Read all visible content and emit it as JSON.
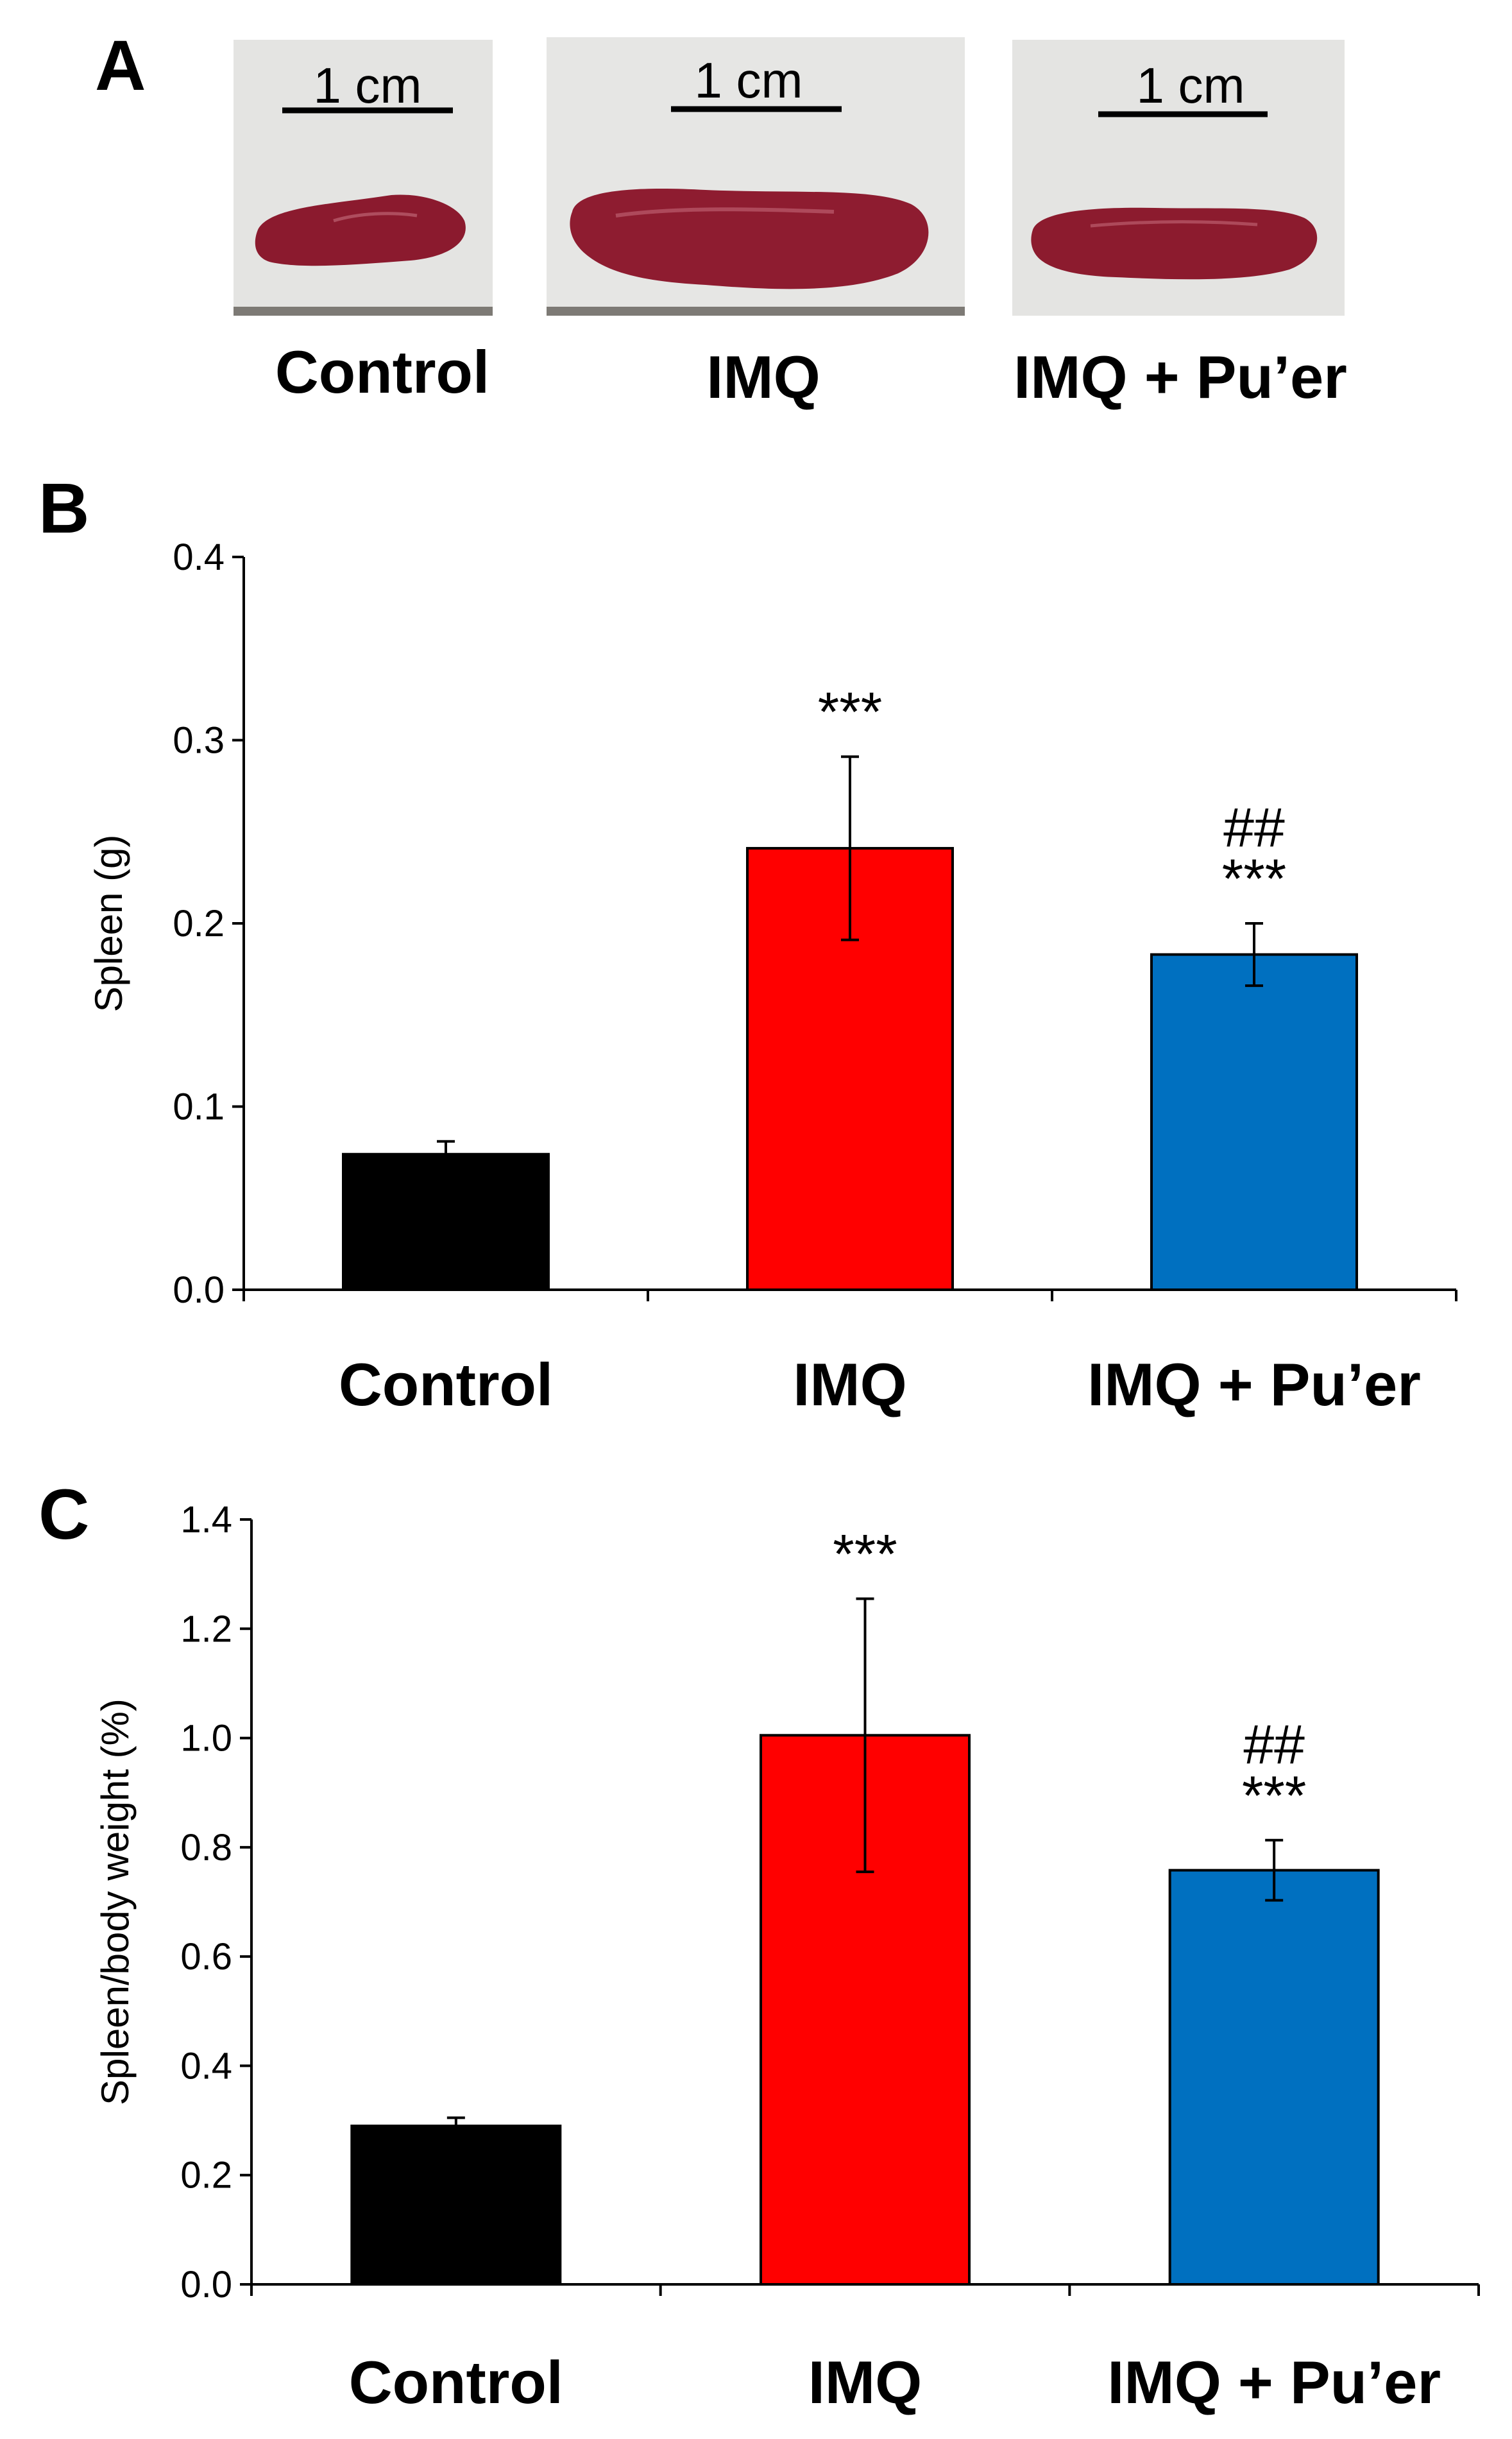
{
  "panels": {
    "a": {
      "letter": "A",
      "scale_bar_label": "1 cm",
      "groups": [
        "Control",
        "IMQ",
        "IMQ + Pu’er"
      ]
    },
    "b": {
      "letter": "B"
    },
    "c": {
      "letter": "C"
    }
  },
  "colors": {
    "control": "#000000",
    "imq": "#ff0000",
    "imq_puer": "#0070c0",
    "spleen_tissue": "#8b1a2e",
    "photo_background": "#e6e6e6"
  },
  "chart_data": [
    {
      "type": "bar",
      "panel": "B",
      "categories": [
        "Control",
        "IMQ",
        "IMQ + Pu’er"
      ],
      "values": [
        0.074,
        0.241,
        0.183
      ],
      "errors": [
        0.007,
        0.05,
        0.017
      ],
      "colors": [
        "#000000",
        "#ff0000",
        "#0070c0"
      ],
      "annotations": [
        {
          "category": "IMQ",
          "lines": [
            "***"
          ]
        },
        {
          "category": "IMQ + Pu’er",
          "lines": [
            "##",
            "***"
          ]
        }
      ],
      "ylabel": "Spleen (g)",
      "xlabel": "",
      "ylim": [
        0.0,
        0.4
      ],
      "yticks": [
        "0.0",
        "0.1",
        "0.2",
        "0.3",
        "0.4"
      ],
      "grid": false
    },
    {
      "type": "bar",
      "panel": "C",
      "categories": [
        "Control",
        "IMQ",
        "IMQ + Pu’er"
      ],
      "values": [
        0.29,
        1.005,
        0.758
      ],
      "errors": [
        0.015,
        0.25,
        0.055
      ],
      "colors": [
        "#000000",
        "#ff0000",
        "#0070c0"
      ],
      "annotations": [
        {
          "category": "IMQ",
          "lines": [
            "***"
          ]
        },
        {
          "category": "IMQ + Pu’er",
          "lines": [
            "##",
            "***"
          ]
        }
      ],
      "ylabel": "Spleen/body weight (%)",
      "xlabel": "",
      "ylim": [
        0.0,
        1.4
      ],
      "yticks": [
        "0.0",
        "0.2",
        "0.4",
        "0.6",
        "0.8",
        "1.0",
        "1.2",
        "1.4"
      ],
      "grid": false
    }
  ]
}
